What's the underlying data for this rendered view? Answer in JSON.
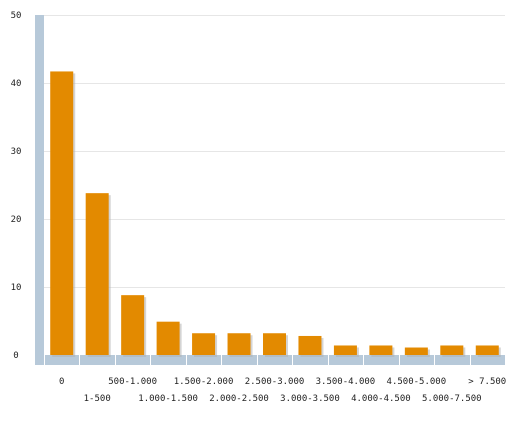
{
  "chart_data": {
    "type": "bar",
    "title": "",
    "xlabel": "",
    "ylabel": "",
    "categories": [
      "0",
      "1-500",
      "500-1.000",
      "1.000-1.500",
      "1.500-2.000",
      "2.000-2.500",
      "2.500-3.000",
      "3.000-3.500",
      "3.500-4.000",
      "4.000-4.500",
      "4.500-5.000",
      "5.000-7.500",
      "> 7.500"
    ],
    "values": [
      41.7,
      23.8,
      8.8,
      4.9,
      3.2,
      3.2,
      3.2,
      2.8,
      1.4,
      1.4,
      1.1,
      1.4,
      1.4
    ],
    "ylim": [
      0,
      50
    ],
    "yticks": [
      0,
      10,
      20,
      30,
      40,
      50
    ],
    "ytick_labels": [
      "0",
      "10",
      "20",
      "30",
      "40",
      "50"
    ],
    "grid": true,
    "colors": {
      "bar": "#e38a00",
      "bar_shadow": "#b0b0b0",
      "axis_band": "#b7c9d9",
      "grid": "#e6e6e6"
    }
  }
}
